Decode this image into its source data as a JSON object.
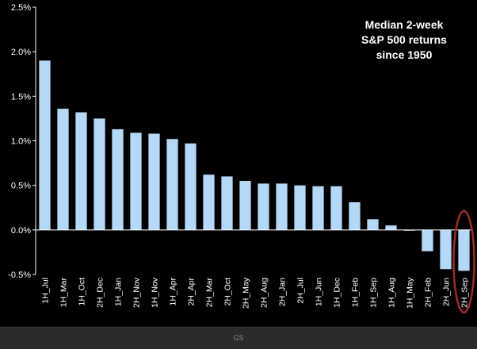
{
  "chart_data": {
    "type": "bar",
    "title": "Median 2-week S&P 500 returns since 1950",
    "title_lines": [
      "Median 2-week",
      "S&P 500 returns",
      "since 1950"
    ],
    "xlabel": "",
    "ylabel": "",
    "ylim": [
      -0.5,
      2.5
    ],
    "yticks": [
      -0.5,
      0.0,
      0.5,
      1.0,
      1.5,
      2.0,
      2.5
    ],
    "ytick_labels": [
      "-0.5%",
      "0.0%",
      "0.5%",
      "1.0%",
      "1.5%",
      "2.0%",
      "2.5%"
    ],
    "categories": [
      "1H_Jul",
      "1H_Mar",
      "1H_Oct",
      "2H_Dec",
      "1H_Jan",
      "2H_Nov",
      "1H_Nov",
      "1H_Apr",
      "2H_Apr",
      "2H_Mar",
      "2H_Oct",
      "2H_May",
      "2H_Aug",
      "2H_Jan",
      "2H_Jul",
      "1H_Jun",
      "1H_Dec",
      "1H_Feb",
      "1H_Sep",
      "1H_Aug",
      "1H_May",
      "2H_Feb",
      "2H_Jun",
      "2H_Sep"
    ],
    "values": [
      1.9,
      1.36,
      1.32,
      1.25,
      1.13,
      1.09,
      1.08,
      1.02,
      0.97,
      0.62,
      0.6,
      0.55,
      0.52,
      0.52,
      0.5,
      0.49,
      0.49,
      0.31,
      0.12,
      0.05,
      0.0,
      -0.24,
      -0.44,
      -0.46
    ],
    "grid": false,
    "legend": "none",
    "highlighted_category": "2H_Sep",
    "colors": {
      "bar": "#b4d8f7",
      "background": "#000000",
      "axis": "#ffffff",
      "highlight_ring": "#9c2b26"
    }
  },
  "footer": {
    "source_label": "GS"
  }
}
